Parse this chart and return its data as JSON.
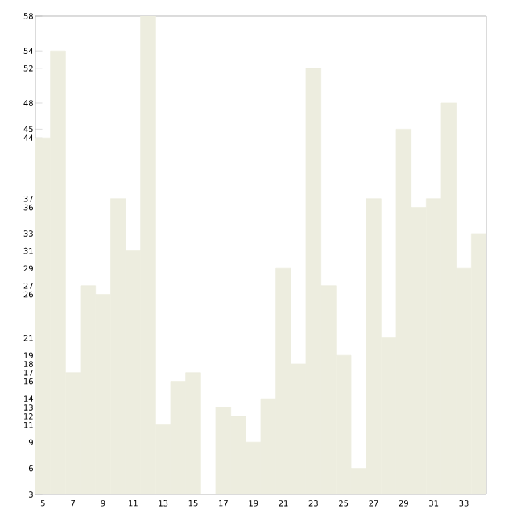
{
  "chart_data": {
    "type": "bar",
    "categories": [
      "5",
      null,
      "7",
      null,
      "9",
      null,
      "11",
      null,
      "13",
      null,
      "15",
      null,
      "17",
      null,
      "19",
      null,
      "21",
      null,
      "23",
      null,
      "25",
      null,
      "27",
      null,
      "29",
      null,
      "31",
      null,
      "33",
      null
    ],
    "values": [
      44,
      54,
      17,
      27,
      26,
      37,
      31,
      58,
      11,
      16,
      17,
      3,
      13,
      12,
      9,
      14,
      29,
      18,
      52,
      27,
      19,
      6,
      37,
      21,
      45,
      36,
      37,
      48,
      29,
      33
    ],
    "color": "#ededdf",
    "ylim": [
      3,
      58
    ],
    "yticks": [
      3,
      6,
      9,
      11,
      12,
      13,
      14,
      16,
      17,
      18,
      19,
      21,
      26,
      27,
      29,
      31,
      33,
      36,
      37,
      44,
      45,
      48,
      52,
      54,
      58
    ],
    "grid": false
  }
}
